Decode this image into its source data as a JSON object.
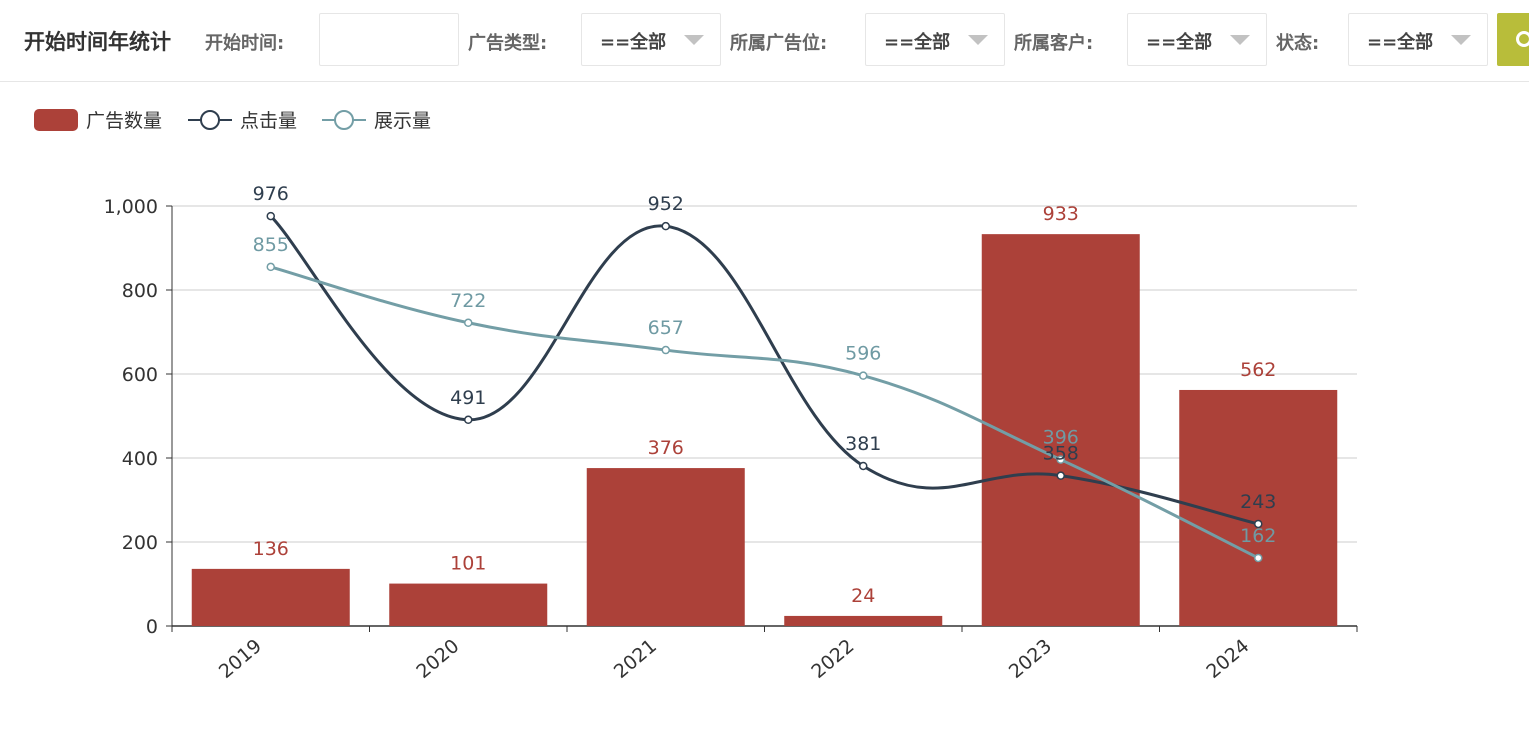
{
  "header": {
    "title": "开始时间年统计",
    "start_time_label": "开始时间:",
    "start_time_value": "",
    "ad_type_label": "广告类型:",
    "ad_type_value": "==全部",
    "ad_slot_label": "所属广告位:",
    "ad_slot_value": "==全部",
    "customer_label": "所属客户:",
    "customer_value": "==全部",
    "status_label": "状态:",
    "status_value": "==全部"
  },
  "colors": {
    "bar": "#ac4139",
    "click": "#2f3e4e",
    "show": "#739ea6",
    "search_button": "#b8bd3a"
  },
  "chart_data": {
    "type": "bar",
    "categories": [
      "2019",
      "2020",
      "2021",
      "2022",
      "2023",
      "2024"
    ],
    "series": [
      {
        "name": "广告数量",
        "type": "bar",
        "values": [
          136,
          101,
          376,
          24,
          933,
          562
        ]
      },
      {
        "name": "点击量",
        "type": "line",
        "smooth": true,
        "values": [
          976,
          491,
          952,
          381,
          358,
          243
        ]
      },
      {
        "name": "展示量",
        "type": "line",
        "smooth": true,
        "values": [
          855,
          722,
          657,
          596,
          396,
          162
        ]
      }
    ],
    "yticks": [
      "0",
      "200",
      "400",
      "600",
      "800",
      "1,000"
    ],
    "ylim": [
      0,
      1000
    ],
    "grid": true,
    "legend": "top-left"
  }
}
